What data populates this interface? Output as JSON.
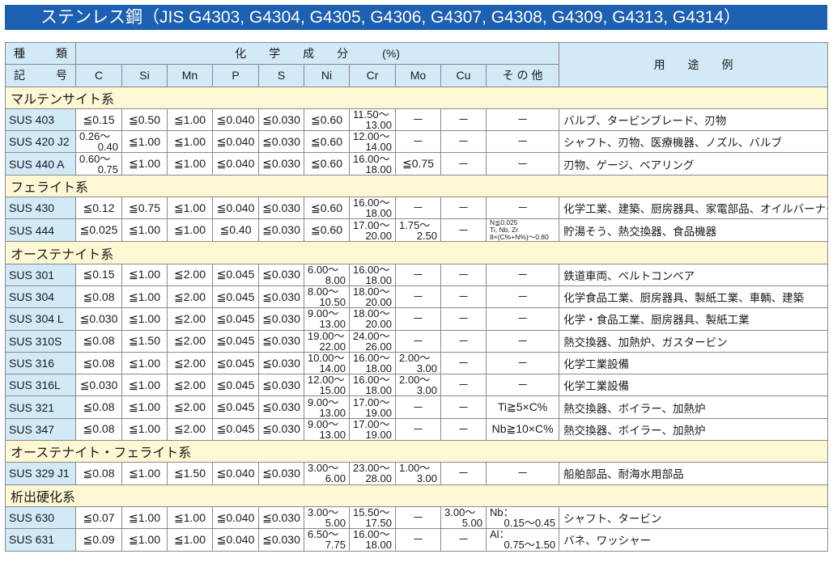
{
  "title": "ステンレス鋼（JIS G4303, G4304, G4305, G4306, G4307, G4308, G4309, G4313, G4314）",
  "header": {
    "grade_top": [
      "種",
      "類"
    ],
    "grade_bottom": [
      "記",
      "号"
    ],
    "chem": "化　　学　　成　　分　　　(%)",
    "use": "用　　途　　例",
    "columns": [
      "C",
      "Si",
      "Mn",
      "P",
      "S",
      "Ni",
      "Cr",
      "Mo",
      "Cu",
      "そ の 他"
    ]
  },
  "colors": {
    "title_bg": "#1d5fb0",
    "header_bg": "#d2e9f8",
    "section_bg": "#fdf7d4"
  },
  "sections": [
    {
      "name": "マルテンサイト系",
      "rows": [
        {
          "grade": "SUS 403",
          "vals": [
            "≦0.15",
            "≦0.50",
            "≦1.00",
            "≦0.040",
            "≦0.030",
            "≦0.60",
            [
              "11.50～",
              "13.00"
            ],
            "－",
            "－",
            "－"
          ],
          "use": "バルブ、タービンブレード、刃物"
        },
        {
          "grade": "SUS 420 J2",
          "vals": [
            [
              "0.26～",
              "0.40"
            ],
            "≦1.00",
            "≦1.00",
            "≦0.040",
            "≦0.030",
            "≦0.60",
            [
              "12.00～",
              "14.00"
            ],
            "－",
            "－",
            "－"
          ],
          "use": "シャフト、刃物、医療機器、ノズル、バルブ"
        },
        {
          "grade": "SUS 440 A",
          "vals": [
            [
              "0.60～",
              "0.75"
            ],
            "≦1.00",
            "≦1.00",
            "≦0.040",
            "≦0.030",
            "≦0.60",
            [
              "16.00～",
              "18.00"
            ],
            "≦0.75",
            "－",
            "－"
          ],
          "use": "刃物、ゲージ、ベアリング"
        }
      ]
    },
    {
      "name": "フェライト系",
      "rows": [
        {
          "grade": "SUS 430",
          "vals": [
            "≦0.12",
            "≦0.75",
            "≦1.00",
            "≦0.040",
            "≦0.030",
            "≦0.60",
            [
              "16.00～",
              "18.00"
            ],
            "－",
            "－",
            "－"
          ],
          "use": "化学工業、建築、厨房器具、家電部品、オイルバーナー部品"
        },
        {
          "grade": "SUS 444",
          "vals": [
            "≦0.025",
            "≦1.00",
            "≦1.00",
            "≦0.40",
            "≦0.030",
            "≦0.60",
            [
              "17.00～",
              "20.00"
            ],
            [
              "1.75～",
              "2.50"
            ],
            "－",
            {
              "small": [
                "N≦0.025",
                "Ti, Nb, Zr",
                "8×(C%+N%)～0.80"
              ]
            }
          ],
          "use": "貯湯そう、熱交換器、食品機器"
        }
      ]
    },
    {
      "name": "オーステナイト系",
      "rows": [
        {
          "grade": "SUS 301",
          "vals": [
            "≦0.15",
            "≦1.00",
            "≦2.00",
            "≦0.045",
            "≦0.030",
            [
              "6.00～",
              "8.00"
            ],
            [
              "16.00～",
              "18.00"
            ],
            "－",
            "－",
            "－"
          ],
          "use": "鉄道車両、ベルトコンベア"
        },
        {
          "grade": "SUS 304",
          "vals": [
            "≦0.08",
            "≦1.00",
            "≦2.00",
            "≦0.045",
            "≦0.030",
            [
              "8.00～",
              "10.50"
            ],
            [
              "18.00～",
              "20.00"
            ],
            "－",
            "－",
            "－"
          ],
          "use": "化学食品工業、厨房器具、製紙工業、車輌、建築"
        },
        {
          "grade": "SUS 304 L",
          "vals": [
            "≦0.030",
            "≦1.00",
            "≦2.00",
            "≦0.045",
            "≦0.030",
            [
              "9.00～",
              "13.00"
            ],
            [
              "18.00～",
              "20.00"
            ],
            "－",
            "－",
            "－"
          ],
          "use": "化学・食品工業、厨房器具、製紙工業"
        },
        {
          "grade": "SUS 310S",
          "vals": [
            "≦0.08",
            "≦1.50",
            "≦2.00",
            "≦0.045",
            "≦0.030",
            [
              "19.00～",
              "22.00"
            ],
            [
              "24.00～",
              "26.00"
            ],
            "－",
            "－",
            "－"
          ],
          "use": "熱交換器、加熱炉、ガスタービン"
        },
        {
          "grade": "SUS 316",
          "vals": [
            "≦0.08",
            "≦1.00",
            "≦2.00",
            "≦0.045",
            "≦0.030",
            [
              "10.00～",
              "14.00"
            ],
            [
              "16.00～",
              "18.00"
            ],
            [
              "2.00～",
              "3.00"
            ],
            "－",
            "－"
          ],
          "use": "化学工業設備"
        },
        {
          "grade": "SUS 316L",
          "vals": [
            "≦0.030",
            "≦1.00",
            "≦2.00",
            "≦0.045",
            "≦0.030",
            [
              "12.00～",
              "15.00"
            ],
            [
              "16.00～",
              "18.00"
            ],
            [
              "2.00～",
              "3.00"
            ],
            "－",
            "－"
          ],
          "use": "化学工業設備"
        },
        {
          "grade": "SUS 321",
          "vals": [
            "≦0.08",
            "≦1.00",
            "≦2.00",
            "≦0.045",
            "≦0.030",
            [
              "9.00～",
              "13.00"
            ],
            [
              "17.00～",
              "19.00"
            ],
            "－",
            "－",
            "Ti≧5×C%"
          ],
          "use": "熱交換器、ボイラー、加熱炉"
        },
        {
          "grade": "SUS 347",
          "vals": [
            "≦0.08",
            "≦1.00",
            "≦2.00",
            "≦0.045",
            "≦0.030",
            [
              "9.00～",
              "13.00"
            ],
            [
              "17.00～",
              "19.00"
            ],
            "－",
            "－",
            "Nb≧10×C%"
          ],
          "use": "熱交換器、ボイラー、加熱炉"
        }
      ]
    },
    {
      "name": "オーステナイト・フェライト系",
      "rows": [
        {
          "grade": "SUS 329 J1",
          "vals": [
            "≦0.08",
            "≦1.00",
            "≦1.50",
            "≦0.040",
            "≦0.030",
            [
              "3.00～",
              "6.00"
            ],
            [
              "23.00～",
              "28.00"
            ],
            [
              "1.00～",
              "3.00"
            ],
            "－",
            "－"
          ],
          "use": "船舶部品、耐海水用部品"
        }
      ]
    },
    {
      "name": "析出硬化系",
      "rows": [
        {
          "grade": "SUS 630",
          "vals": [
            "≦0.07",
            "≦1.00",
            "≦1.00",
            "≦0.040",
            "≦0.030",
            [
              "3.00～",
              "5.00"
            ],
            [
              "15.50～",
              "17.50"
            ],
            "－",
            [
              "3.00～",
              "5.00"
            ],
            [
              "Nb：",
              "0.15～0.45"
            ]
          ],
          "use": "シャフト、タービン"
        },
        {
          "grade": "SUS 631",
          "vals": [
            "≦0.09",
            "≦1.00",
            "≦1.00",
            "≦0.040",
            "≦0.030",
            [
              "6.50～",
              "7.75"
            ],
            [
              "16.00～",
              "18.00"
            ],
            "－",
            "－",
            [
              "Al：",
              "0.75～1.50"
            ]
          ],
          "use": "バネ、ワッシャー"
        }
      ]
    }
  ]
}
